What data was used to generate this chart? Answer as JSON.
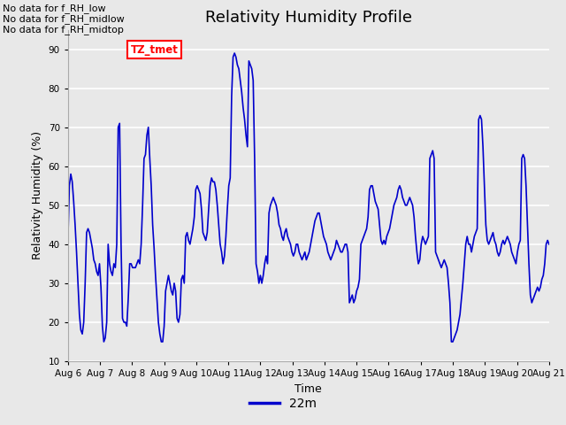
{
  "title": "Relativity Humidity Profile",
  "xlabel": "Time",
  "ylabel": "Relativity Humidity (%)",
  "ylim": [
    10,
    95
  ],
  "yticks": [
    10,
    20,
    30,
    40,
    50,
    60,
    70,
    80,
    90
  ],
  "line_color": "#0000cc",
  "line_width": 1.2,
  "bg_color": "#e8e8e8",
  "plot_bg_color": "#e8e8e8",
  "legend_label": "22m",
  "legend_line_color": "#0000cc",
  "no_data_texts": [
    "No data for f_RH_low",
    "No data for f_RH_midlow",
    "No data for f_RH_midtop"
  ],
  "tz_label": "TZ_tmet",
  "x_tick_labels": [
    "Aug 6",
    "Aug 7",
    "Aug 8",
    "Aug 9",
    "Aug 10",
    "Aug 11",
    "Aug 12",
    "Aug 13",
    "Aug 14",
    "Aug 15",
    "Aug 16",
    "Aug 17",
    "Aug 18",
    "Aug 19",
    "Aug 20",
    "Aug 21"
  ],
  "y_values": [
    41,
    55,
    58,
    56,
    51,
    45,
    38,
    30,
    22,
    18,
    17,
    20,
    30,
    43,
    44,
    43,
    41,
    39,
    36,
    35,
    33,
    32,
    35,
    29,
    19,
    15,
    16,
    20,
    40,
    35,
    33,
    32,
    35,
    34,
    40,
    70,
    71,
    40,
    21,
    20,
    20,
    19,
    26,
    35,
    35,
    34,
    34,
    34,
    35,
    36,
    35,
    40,
    50,
    62,
    63,
    68,
    70,
    62,
    55,
    45,
    39,
    32,
    26,
    20,
    17,
    15,
    15,
    19,
    28,
    30,
    32,
    30,
    28,
    27,
    30,
    28,
    21,
    20,
    22,
    31,
    32,
    30,
    42,
    43,
    41,
    40,
    42,
    44,
    47,
    54,
    55,
    54,
    53,
    49,
    43,
    42,
    41,
    43,
    49,
    55,
    57,
    56,
    56,
    54,
    50,
    45,
    40,
    38,
    35,
    37,
    42,
    49,
    55,
    57,
    78,
    88,
    89,
    88,
    86,
    85,
    82,
    79,
    75,
    72,
    68,
    65,
    87,
    86,
    85,
    82,
    62,
    35,
    33,
    30,
    32,
    30,
    32,
    35,
    37,
    35,
    48,
    50,
    51,
    52,
    51,
    50,
    48,
    45,
    44,
    42,
    41,
    43,
    44,
    42,
    41,
    40,
    38,
    37,
    38,
    40,
    40,
    38,
    37,
    36,
    37,
    38,
    36,
    37,
    38,
    40,
    42,
    44,
    46,
    47,
    48,
    48,
    46,
    44,
    42,
    41,
    40,
    38,
    37,
    36,
    37,
    38,
    39,
    41,
    40,
    39,
    38,
    38,
    39,
    40,
    40,
    38,
    25,
    26,
    27,
    25,
    26,
    28,
    29,
    31,
    40,
    41,
    42,
    43,
    44,
    47,
    54,
    55,
    55,
    53,
    51,
    50,
    49,
    45,
    41,
    40,
    41,
    40,
    42,
    43,
    44,
    46,
    48,
    50,
    51,
    52,
    54,
    55,
    54,
    52,
    51,
    50,
    50,
    51,
    52,
    51,
    50,
    47,
    42,
    38,
    35,
    36,
    40,
    42,
    41,
    40,
    41,
    42,
    62,
    63,
    64,
    62,
    38,
    37,
    36,
    35,
    34,
    35,
    36,
    35,
    34,
    30,
    25,
    15,
    15,
    16,
    17,
    18,
    20,
    22,
    26,
    30,
    35,
    40,
    42,
    40,
    40,
    38,
    40,
    42,
    43,
    44,
    72,
    73,
    72,
    65,
    55,
    45,
    41,
    40,
    41,
    42,
    43,
    41,
    40,
    38,
    37,
    38,
    40,
    41,
    40,
    41,
    42,
    41,
    40,
    38,
    37,
    36,
    35,
    38,
    40,
    41,
    62,
    63,
    62,
    55,
    45,
    35,
    27,
    25,
    26,
    27,
    28,
    29,
    28,
    29,
    31,
    32,
    35,
    40,
    41,
    40
  ]
}
